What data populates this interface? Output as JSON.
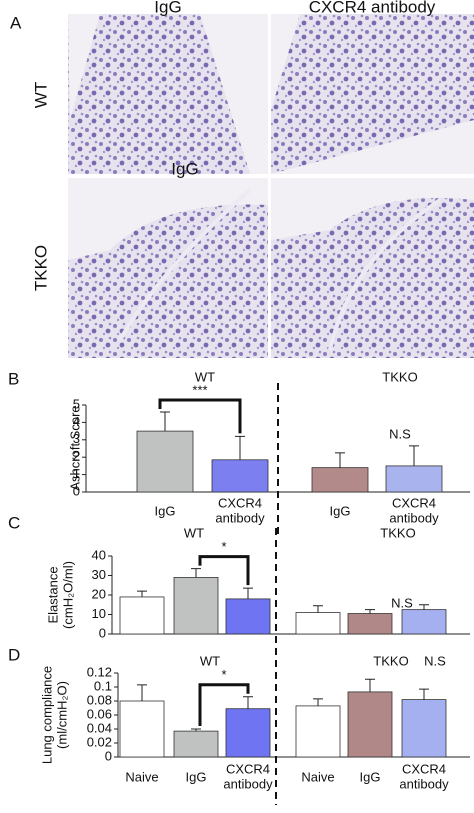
{
  "panel_a": {
    "panel": "A",
    "columns": [
      "IgG",
      "CXCR4 antibody"
    ],
    "rows": [
      "WT",
      "TKKO"
    ],
    "image_label": "IgG"
  },
  "chart_data": [
    {
      "type": "bar",
      "panel": "B",
      "y_label": "Ashcroft Score",
      "ylim": [
        0,
        5
      ],
      "yticks": [
        0,
        1,
        2,
        3,
        4,
        5
      ],
      "groups": [
        "WT",
        "TKKO"
      ],
      "categories": [
        "IgG",
        "CXCR4 antibody",
        "IgG",
        "CXCR4 antibody"
      ],
      "values": [
        3.5,
        1.85,
        1.4,
        1.5
      ],
      "errors": [
        1.1,
        1.35,
        0.85,
        1.15
      ],
      "colors": [
        "#bfc2c0",
        "#7b7ff0",
        "#b38a8a",
        "#a9b3ee"
      ],
      "significance": "***",
      "ns": "N.S"
    },
    {
      "type": "bar",
      "panel": "C",
      "y_label": "Elastance (cmH₂O/ml)",
      "ylim": [
        0,
        40
      ],
      "yticks": [
        0,
        10,
        20,
        30,
        40
      ],
      "groups": [
        "WT",
        "TKKO"
      ],
      "categories": [
        null,
        null,
        null,
        null,
        null,
        null
      ],
      "values": [
        19,
        29,
        18,
        11,
        10.5,
        12.5
      ],
      "errors": [
        3,
        4.5,
        5.5,
        3.5,
        2,
        2.5
      ],
      "colors": [
        "#ffffff",
        "#bfc2c0",
        "#6f74f2",
        "#ffffff",
        "#b08888",
        "#a5b0f0"
      ],
      "significance": "*",
      "ns": "N.S"
    },
    {
      "type": "bar",
      "panel": "D",
      "y_label": "Lung compliance (ml/cmH₂O)",
      "ylim": [
        0,
        0.12
      ],
      "yticks": [
        0,
        0.02,
        0.04,
        0.06,
        0.08,
        0.1,
        0.12
      ],
      "groups": [
        "WT",
        "TKKO"
      ],
      "categories": [
        "Naive",
        "IgG",
        "CXCR4 antibody",
        "Naive",
        "IgG",
        "CXCR4 antibody"
      ],
      "values": [
        0.08,
        0.037,
        0.069,
        0.073,
        0.093,
        0.082
      ],
      "errors": [
        0.023,
        0.003,
        0.017,
        0.01,
        0.018,
        0.015
      ],
      "colors": [
        "#ffffff",
        "#bfc2c0",
        "#6f74f2",
        "#ffffff",
        "#b08888",
        "#a5b0f0"
      ],
      "significance": "*",
      "ns": "N.S"
    }
  ]
}
